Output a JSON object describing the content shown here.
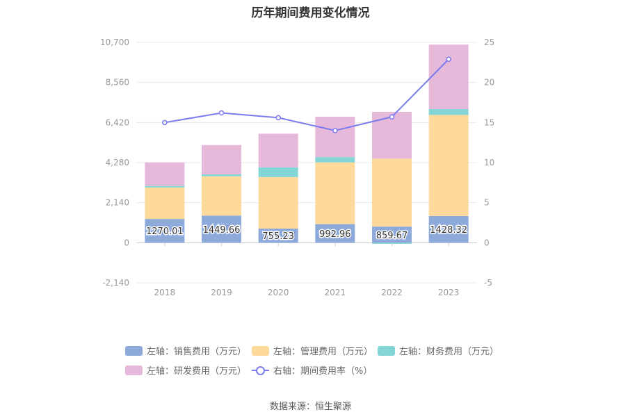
{
  "title": "历年期间费用变化情况",
  "source": "数据来源：恒生聚源",
  "colors": {
    "sales": "#8eaadb",
    "admin": "#fdd99b",
    "finance": "#84d6d6",
    "rd": "#e6b8da",
    "rate": "#7b7bf0",
    "grid": "#e8e8e8",
    "axis_text": "#999999"
  },
  "legend": {
    "sales": "左轴：销售费用（万元）",
    "admin": "左轴：管理费用（万元）",
    "finance": "左轴：财务费用（万元）",
    "rd": "左轴：研发费用（万元）",
    "rate": "右轴：期间费用率（%）"
  },
  "chart_data": {
    "type": "bar",
    "stacked": true,
    "categories": [
      "2018",
      "2019",
      "2020",
      "2021",
      "2022",
      "2023"
    ],
    "left_axis": {
      "ticks": [
        "10,700",
        "8,560",
        "6,420",
        "4,280",
        "2,140",
        "0",
        "-2,140"
      ],
      "ylim": [
        -2140,
        10700
      ]
    },
    "right_axis": {
      "ticks": [
        "25",
        "20",
        "15",
        "10",
        "5",
        "0",
        "-5"
      ],
      "ylim": [
        -5,
        25
      ]
    },
    "series": [
      {
        "name": "左轴：销售费用（万元）",
        "key": "sales",
        "values": [
          1270.01,
          1449.66,
          755.23,
          992.96,
          859.67,
          1428.32
        ],
        "labels": [
          "1270.01",
          "1449.66",
          "755.23",
          "992.96",
          "859.67",
          "1428.32"
        ]
      },
      {
        "name": "左轴：管理费用（万元）",
        "key": "admin",
        "values": [
          1680,
          2100,
          2750,
          3300,
          3630,
          5400
        ]
      },
      {
        "name": "左轴：财务费用（万元）",
        "key": "finance",
        "values": [
          80,
          100,
          520,
          280,
          -60,
          310
        ]
      },
      {
        "name": "左轴：研发费用（万元）",
        "key": "rd",
        "values": [
          1260,
          1570,
          1800,
          2160,
          2500,
          3440
        ]
      }
    ],
    "line_series": {
      "name": "右轴：期间费用率（%）",
      "key": "rate",
      "values": [
        15.0,
        16.2,
        15.6,
        14.0,
        15.7,
        22.9
      ]
    },
    "grid": true,
    "legend_position": "bottom"
  }
}
